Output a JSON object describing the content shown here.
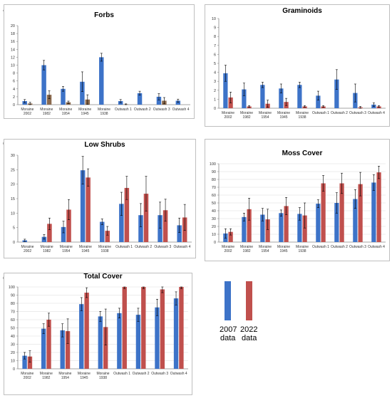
{
  "panels": [
    "a",
    "b",
    "c",
    "d",
    "e"
  ],
  "legend": {
    "year1": "2007",
    "label1": "data",
    "year2": "2022",
    "label2": "data"
  },
  "colors": {
    "s2007": "#3d73c8",
    "s2022": "#c0504d",
    "s2022_forbs": "#8b6a4e"
  },
  "chart_data": [
    {
      "type": "bar",
      "title": "Forbs",
      "categories": [
        "Moraine 2002",
        "Moraine 1982",
        "Moraine 1954",
        "Moraine 1945",
        "Moraine 1938",
        "Outwash 1",
        "Outwash 2",
        "Outwash 3",
        "Outwash 4"
      ],
      "ylim": [
        0,
        20
      ],
      "yticks": [
        0,
        2,
        4,
        6,
        8,
        10,
        12,
        14,
        16,
        18,
        20
      ],
      "series": [
        {
          "name": "2007",
          "values": [
            0.9,
            10.0,
            4.0,
            5.8,
            12.0,
            0.9,
            2.9,
            2.0,
            1.0
          ],
          "errors": [
            0.4,
            1.2,
            0.6,
            2.5,
            1.0,
            0.4,
            0.5,
            0.8,
            0.4
          ]
        },
        {
          "name": "2022",
          "values": [
            0.3,
            2.5,
            0.6,
            1.3,
            0.0,
            0.1,
            0.0,
            1.0,
            0.0
          ],
          "errors": [
            0.3,
            1.0,
            0.3,
            1.2,
            0.0,
            0.1,
            0.0,
            0.8,
            0.0
          ]
        }
      ],
      "grid": false
    },
    {
      "type": "bar",
      "title": "Graminoids",
      "categories": [
        "Moraine 2002",
        "Moraine 1982",
        "Moraine 1954",
        "Moraine 1945",
        "Moraine 1938",
        "Outwash 1",
        "Outwash 2",
        "Outwash 3",
        "Outwash 4"
      ],
      "ylim": [
        0,
        10
      ],
      "yticks": [
        0,
        1,
        2,
        3,
        4,
        5,
        6,
        7,
        8,
        9,
        10
      ],
      "series": [
        {
          "name": "2007",
          "values": [
            3.9,
            2.1,
            2.6,
            2.2,
            2.6,
            1.4,
            3.2,
            1.7,
            0.4
          ],
          "errors": [
            0.9,
            0.7,
            0.3,
            0.5,
            0.3,
            0.5,
            1.1,
            1.0,
            0.2
          ]
        },
        {
          "name": "2022",
          "values": [
            1.2,
            0.2,
            0.5,
            0.7,
            0.2,
            0.2,
            0.0,
            0.1,
            0.2
          ],
          "errors": [
            0.6,
            0.1,
            0.4,
            0.4,
            0.1,
            0.1,
            0.0,
            0.1,
            0.1
          ]
        }
      ],
      "grid": false
    },
    {
      "type": "bar",
      "title": "Low Shrubs",
      "categories": [
        "Moraine 2002",
        "Moraine 1982",
        "Moraine 1954",
        "Moraine 1945",
        "Moraine 1938",
        "Outwash 1",
        "Outwash 2",
        "Outwash 3",
        "Outwash 4"
      ],
      "ylim": [
        0,
        30
      ],
      "yticks": [
        0,
        5,
        10,
        15,
        20,
        25,
        30
      ],
      "series": [
        {
          "name": "2007",
          "values": [
            0.6,
            1.8,
            5.2,
            24.8,
            7.0,
            13.2,
            9.3,
            9.3,
            5.8
          ],
          "errors": [
            0.4,
            0.8,
            2.0,
            4.8,
            1.0,
            4.0,
            4.0,
            4.5,
            2.5
          ]
        },
        {
          "name": "2022",
          "values": [
            0.0,
            6.3,
            11.2,
            22.3,
            3.9,
            18.7,
            16.7,
            11.0,
            8.5
          ],
          "errors": [
            0.0,
            2.0,
            3.5,
            3.0,
            1.5,
            4.0,
            6.0,
            3.8,
            4.5
          ]
        }
      ],
      "grid": false
    },
    {
      "type": "bar",
      "title": "Moss Cover",
      "categories": [
        "Moraine 2002",
        "Moraine 1982",
        "Moraine 1954",
        "Moraine 1945",
        "Moraine 1938",
        "Outwash 1",
        "Outwash 2",
        "Outwash 3",
        "Outwash 4"
      ],
      "ylim": [
        0,
        100
      ],
      "yticks": [
        0,
        10,
        20,
        30,
        40,
        50,
        60,
        70,
        80,
        90,
        100
      ],
      "series": [
        {
          "name": "2007",
          "values": [
            11,
            32,
            35,
            37,
            36,
            49,
            50,
            55,
            76
          ],
          "errors": [
            6,
            5,
            8,
            4,
            8,
            5,
            13,
            12,
            10
          ]
        },
        {
          "name": "2022",
          "values": [
            13,
            42,
            29,
            46,
            34,
            75,
            75,
            74,
            89
          ],
          "errors": [
            4,
            14,
            13,
            11,
            16,
            10,
            13,
            15,
            8
          ]
        }
      ],
      "grid": true
    },
    {
      "type": "bar",
      "title": "Total Cover",
      "categories": [
        "Moraine 2002",
        "Moraine 1982",
        "Moraine 1954",
        "Moraine 1945",
        "Moraine 1938",
        "Outwash 1",
        "Outwash 2",
        "Outwash 3",
        "Outwash 4"
      ],
      "ylim": [
        0,
        100
      ],
      "yticks": [
        0,
        10,
        20,
        30,
        40,
        50,
        60,
        70,
        80,
        90,
        100
      ],
      "series": [
        {
          "name": "2007",
          "values": [
            16,
            49,
            47,
            79,
            64,
            68,
            66,
            75,
            86
          ],
          "errors": [
            4,
            6,
            8,
            8,
            6,
            6,
            8,
            10,
            8
          ]
        },
        {
          "name": "2022",
          "values": [
            15,
            60,
            46,
            93,
            51,
            100,
            100,
            97,
            100
          ],
          "errors": [
            7,
            8,
            15,
            6,
            22,
            2,
            2,
            4,
            2
          ]
        }
      ],
      "grid": true
    }
  ]
}
